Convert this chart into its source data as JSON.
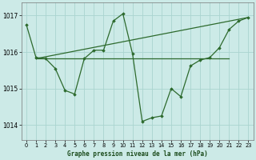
{
  "title": "Graphe pression niveau de la mer (hPa)",
  "bg_color": "#cceae7",
  "grid_color": "#aad4d0",
  "line_color": "#2d6a2d",
  "xlim": [
    -0.5,
    23.5
  ],
  "ylim": [
    1013.6,
    1017.35
  ],
  "yticks": [
    1014,
    1015,
    1016,
    1017
  ],
  "xticks": [
    0,
    1,
    2,
    3,
    4,
    5,
    6,
    7,
    8,
    9,
    10,
    11,
    12,
    13,
    14,
    15,
    16,
    17,
    18,
    19,
    20,
    21,
    22,
    23
  ],
  "series": [
    {
      "x": [
        0,
        1,
        2,
        3,
        4,
        5,
        6,
        7,
        8,
        9,
        10,
        11,
        12,
        13,
        14,
        15,
        16,
        17,
        18,
        19,
        20,
        21,
        22,
        23
      ],
      "y": [
        1016.75,
        1015.85,
        1015.82,
        1015.55,
        1014.95,
        1014.85,
        1015.82,
        1016.05,
        1016.05,
        1016.85,
        1017.05,
        1015.95,
        1014.1,
        1014.2,
        1014.25,
        1015.0,
        1014.78,
        1015.62,
        1015.78,
        1015.85,
        1016.12,
        1016.62,
        1016.85,
        1016.95
      ],
      "lw": 0.9,
      "marker": "D",
      "ms": 1.8
    },
    {
      "x": [
        1,
        23
      ],
      "y": [
        1015.82,
        1016.95
      ],
      "lw": 0.9,
      "marker": null,
      "ms": 0
    },
    {
      "x": [
        1,
        21
      ],
      "y": [
        1015.82,
        1015.82
      ],
      "lw": 0.9,
      "marker": null,
      "ms": 0
    }
  ]
}
